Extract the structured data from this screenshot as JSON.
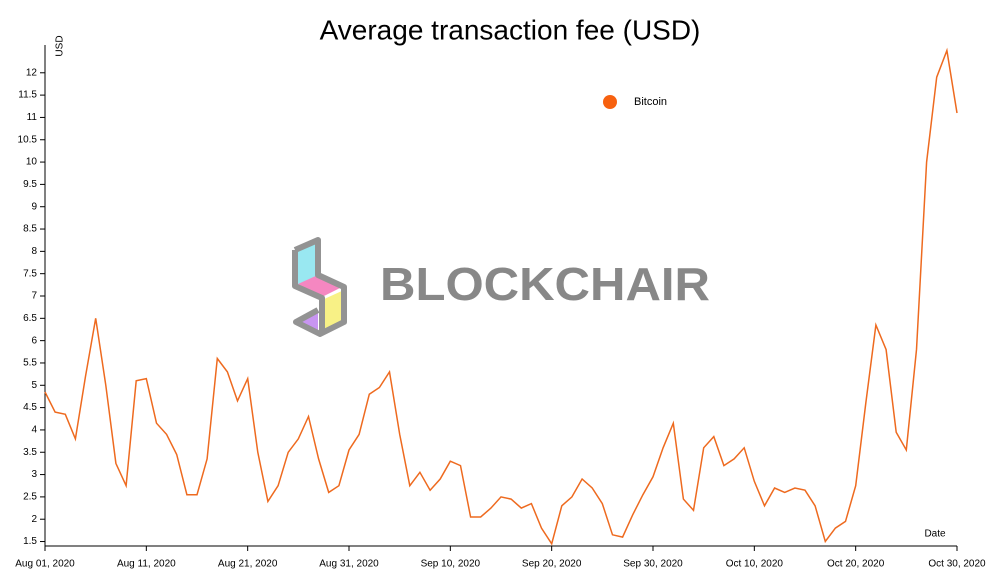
{
  "chart_data": {
    "type": "line",
    "title": "Average transaction fee (USD)",
    "watermark": "BLOCKCHAIR",
    "y_label": "USD",
    "x_label": "Date",
    "x": [
      "2020-08-01",
      "2020-08-02",
      "2020-08-03",
      "2020-08-04",
      "2020-08-05",
      "2020-08-06",
      "2020-08-07",
      "2020-08-08",
      "2020-08-09",
      "2020-08-10",
      "2020-08-11",
      "2020-08-12",
      "2020-08-13",
      "2020-08-14",
      "2020-08-15",
      "2020-08-16",
      "2020-08-17",
      "2020-08-18",
      "2020-08-19",
      "2020-08-20",
      "2020-08-21",
      "2020-08-22",
      "2020-08-23",
      "2020-08-24",
      "2020-08-25",
      "2020-08-26",
      "2020-08-27",
      "2020-08-28",
      "2020-08-29",
      "2020-08-30",
      "2020-08-31",
      "2020-09-01",
      "2020-09-02",
      "2020-09-03",
      "2020-09-04",
      "2020-09-05",
      "2020-09-06",
      "2020-09-07",
      "2020-09-08",
      "2020-09-09",
      "2020-09-10",
      "2020-09-11",
      "2020-09-12",
      "2020-09-13",
      "2020-09-14",
      "2020-09-15",
      "2020-09-16",
      "2020-09-17",
      "2020-09-18",
      "2020-09-19",
      "2020-09-20",
      "2020-09-21",
      "2020-09-22",
      "2020-09-23",
      "2020-09-24",
      "2020-09-25",
      "2020-09-26",
      "2020-09-27",
      "2020-09-28",
      "2020-09-29",
      "2020-09-30",
      "2020-10-01",
      "2020-10-02",
      "2020-10-03",
      "2020-10-04",
      "2020-10-05",
      "2020-10-06",
      "2020-10-07",
      "2020-10-08",
      "2020-10-09",
      "2020-10-10",
      "2020-10-11",
      "2020-10-12",
      "2020-10-13",
      "2020-10-14",
      "2020-10-15",
      "2020-10-16",
      "2020-10-17",
      "2020-10-18",
      "2020-10-19",
      "2020-10-20",
      "2020-10-21",
      "2020-10-22",
      "2020-10-23",
      "2020-10-24",
      "2020-10-25",
      "2020-10-26",
      "2020-10-27",
      "2020-10-28",
      "2020-10-29",
      "2020-10-30"
    ],
    "series": [
      {
        "name": "Bitcoin",
        "color": "#ee6a1f",
        "marker_color": "#f7610f",
        "values": [
          4.85,
          4.4,
          4.35,
          3.8,
          5.2,
          6.5,
          5.0,
          3.25,
          2.75,
          5.1,
          5.15,
          4.15,
          3.9,
          3.45,
          2.55,
          2.55,
          3.35,
          5.6,
          5.3,
          4.65,
          5.15,
          3.5,
          2.4,
          2.75,
          3.5,
          3.8,
          4.3,
          3.35,
          2.6,
          2.75,
          3.55,
          3.9,
          4.8,
          4.95,
          5.3,
          3.9,
          2.75,
          3.05,
          2.65,
          2.9,
          3.3,
          3.2,
          2.05,
          2.05,
          2.25,
          2.5,
          2.45,
          2.25,
          2.35,
          1.8,
          1.45,
          2.3,
          2.5,
          2.9,
          2.7,
          2.35,
          1.65,
          1.6,
          2.1,
          2.55,
          2.95,
          3.6,
          4.15,
          2.45,
          2.2,
          3.6,
          3.85,
          3.2,
          3.35,
          3.6,
          2.85,
          2.3,
          2.7,
          2.6,
          2.7,
          2.65,
          2.3,
          1.5,
          1.8,
          1.95,
          2.75,
          4.6,
          6.35,
          5.8,
          3.95,
          3.55,
          5.8,
          10.0,
          11.9,
          12.5,
          11.1
        ]
      }
    ],
    "xlim": [
      "2020-08-01",
      "2020-10-30"
    ],
    "xticks": [
      {
        "value": "2020-08-01",
        "label": "Aug 01, 2020"
      },
      {
        "value": "2020-08-11",
        "label": "Aug 11, 2020"
      },
      {
        "value": "2020-08-21",
        "label": "Aug 21, 2020"
      },
      {
        "value": "2020-08-31",
        "label": "Aug 31, 2020"
      },
      {
        "value": "2020-09-10",
        "label": "Sep 10, 2020"
      },
      {
        "value": "2020-09-20",
        "label": "Sep 20, 2020"
      },
      {
        "value": "2020-09-30",
        "label": "Sep 30, 2020"
      },
      {
        "value": "2020-10-10",
        "label": "Oct 10, 2020"
      },
      {
        "value": "2020-10-20",
        "label": "Oct 20, 2020"
      },
      {
        "value": "2020-10-30",
        "label": "Oct 30, 2020"
      }
    ],
    "ylim": [
      1.4,
      12.6
    ],
    "yticks": [
      1.5,
      2,
      2.5,
      3,
      3.5,
      4,
      4.5,
      5,
      5.5,
      6,
      6.5,
      7,
      7.5,
      8,
      8.5,
      9,
      9.5,
      10,
      10.5,
      11,
      11.5,
      12
    ],
    "grid": false
  }
}
